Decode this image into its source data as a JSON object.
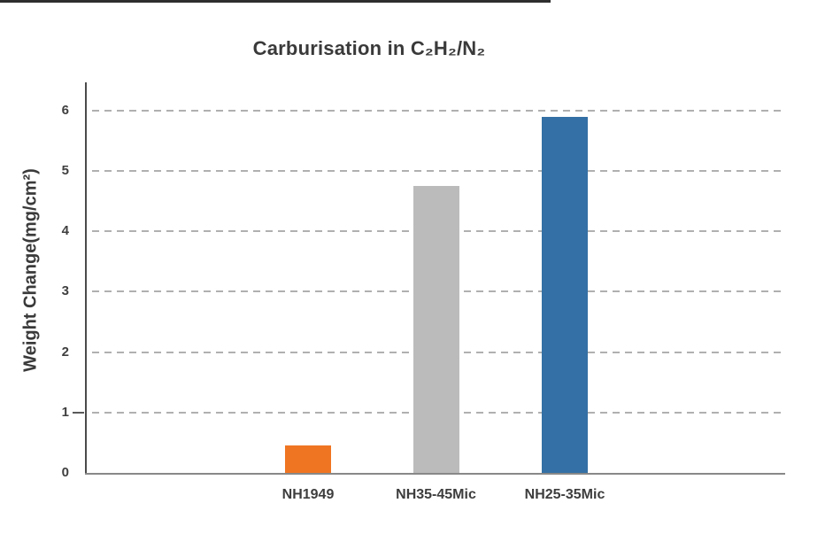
{
  "page": {
    "background": "#ffffff",
    "top_edge_line_color": "#2e2e2e"
  },
  "chart_data": {
    "type": "bar",
    "title": "Carburisation in C₂H₂/N₂",
    "ylabel": "Weight Change(mg/cm²)",
    "xlabel": "",
    "categories": [
      "NH1949",
      "NH35-45Mic",
      "NH25-35Mic"
    ],
    "values": [
      0.45,
      4.75,
      5.9
    ],
    "bar_colors": [
      "#F07522",
      "#BBBBBB",
      "#3470A5"
    ],
    "yticks": [
      0,
      1,
      2,
      3,
      4,
      5,
      6
    ],
    "ylim": [
      0,
      6
    ],
    "grid": "horizontal-dashed",
    "legend": "none",
    "title_color": "#3A3A3A",
    "text_color": "#3F3F3F",
    "axis_color": "#4B4B4B",
    "gridline_color": "#B0B0B0"
  }
}
